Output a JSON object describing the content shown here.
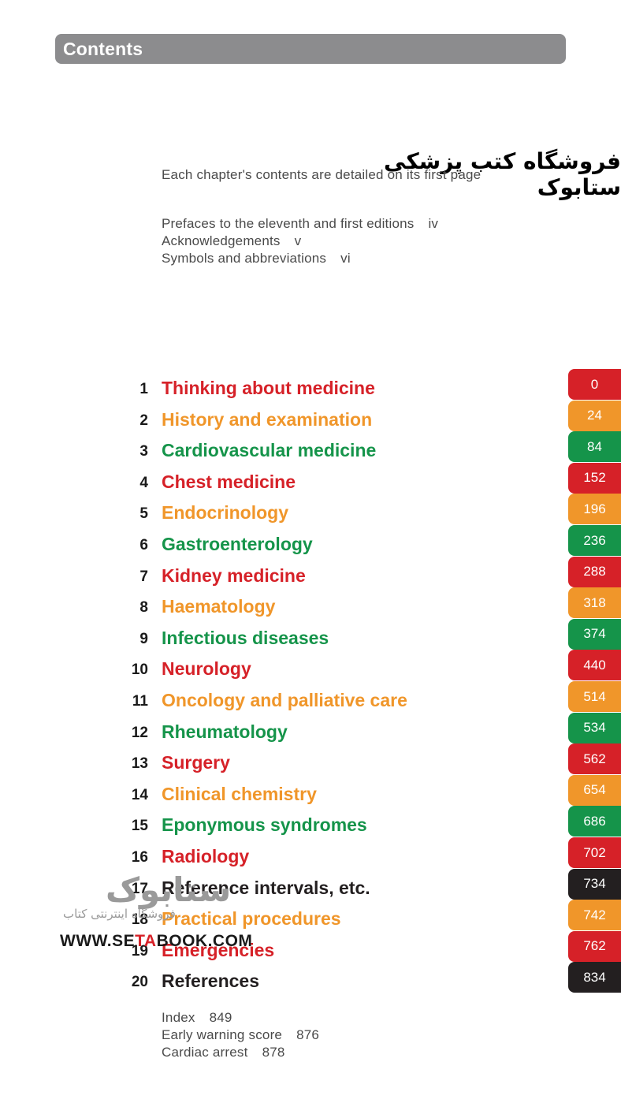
{
  "header": {
    "title": "Contents"
  },
  "watermark": {
    "text": "فروشگاه کتب پزشکی ستابوک"
  },
  "intro": {
    "note": "Each chapter's contents are detailed on its first page"
  },
  "front_matter": [
    {
      "title": "Prefaces to the eleventh and first editions",
      "page": "iv"
    },
    {
      "title": "Acknowledgements",
      "page": "v"
    },
    {
      "title": "Symbols and abbreviations",
      "page": "vi"
    }
  ],
  "colors": {
    "red": "#d62128",
    "orange": "#f0962a",
    "green": "#15944a",
    "black": "#231f20"
  },
  "chapters": [
    {
      "num": "1",
      "title": "Thinking about medicine",
      "page": "0",
      "color": "#d62128"
    },
    {
      "num": "2",
      "title": "History and examination",
      "page": "24",
      "color": "#f0962a"
    },
    {
      "num": "3",
      "title": "Cardiovascular medicine",
      "page": "84",
      "color": "#15944a"
    },
    {
      "num": "4",
      "title": "Chest medicine",
      "page": "152",
      "color": "#d62128"
    },
    {
      "num": "5",
      "title": "Endocrinology",
      "page": "196",
      "color": "#f0962a"
    },
    {
      "num": "6",
      "title": "Gastroenterology",
      "page": "236",
      "color": "#15944a"
    },
    {
      "num": "7",
      "title": "Kidney medicine",
      "page": "288",
      "color": "#d62128"
    },
    {
      "num": "8",
      "title": "Haematology",
      "page": "318",
      "color": "#f0962a"
    },
    {
      "num": "9",
      "title": "Infectious diseases",
      "page": "374",
      "color": "#15944a"
    },
    {
      "num": "10",
      "title": "Neurology",
      "page": "440",
      "color": "#d62128"
    },
    {
      "num": "11",
      "title": "Oncology and palliative care",
      "page": "514",
      "color": "#f0962a"
    },
    {
      "num": "12",
      "title": "Rheumatology",
      "page": "534",
      "color": "#15944a"
    },
    {
      "num": "13",
      "title": "Surgery",
      "page": "562",
      "color": "#d62128"
    },
    {
      "num": "14",
      "title": "Clinical chemistry",
      "page": "654",
      "color": "#f0962a"
    },
    {
      "num": "15",
      "title": "Eponymous syndromes",
      "page": "686",
      "color": "#15944a"
    },
    {
      "num": "16",
      "title": "Radiology",
      "page": "702",
      "color": "#d62128"
    },
    {
      "num": "17",
      "title": "Reference intervals, etc.",
      "page": "734",
      "color": "#231f20"
    },
    {
      "num": "18",
      "title": "Practical procedures",
      "page": "742",
      "color": "#f0962a"
    },
    {
      "num": "19",
      "title": "Emergencies",
      "page": "762",
      "color": "#d62128"
    },
    {
      "num": "20",
      "title": "References",
      "page": "834",
      "color": "#231f20"
    }
  ],
  "back_matter": [
    {
      "title": "Index",
      "page": "849"
    },
    {
      "title": "Early warning score",
      "page": "876"
    },
    {
      "title": "Cardiac arrest",
      "page": "878"
    }
  ],
  "logo": {
    "brand": "ستابوک",
    "subtitle": "فروشگاه اینترنتی کتاب",
    "url_pre": "WWW.SE",
    "url_accent": "TA",
    "url_post": "BOOK.COM"
  }
}
